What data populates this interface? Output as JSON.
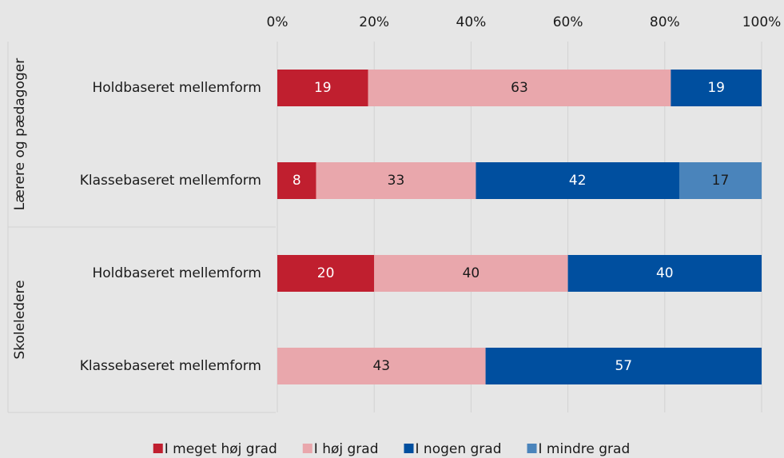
{
  "chart_data": {
    "type": "bar",
    "orientation": "horizontal",
    "stacked": true,
    "groups": [
      {
        "name": "Lærere og pædagoger",
        "categories": [
          "Holdbaseret mellemform",
          "Klassebaseret mellemform"
        ]
      },
      {
        "name": "Skoleledere",
        "categories": [
          "Holdbaseret mellemform",
          "Klassebaseret mellemform"
        ]
      }
    ],
    "series": [
      {
        "name": "I meget høj grad",
        "color": "#c01f2f",
        "label_color": "#ffffff",
        "values": [
          18.75,
          8,
          20,
          null
        ],
        "value_labels": [
          "19",
          "8",
          "20",
          null
        ]
      },
      {
        "name": "I høj grad",
        "color": "#e9a7ac",
        "label_color": "#1a1a1a",
        "values": [
          62.5,
          33,
          40,
          43
        ],
        "value_labels": [
          "63",
          "33",
          "40",
          "43"
        ]
      },
      {
        "name": "I nogen grad",
        "color": "#004f9f",
        "label_color": "#ffffff",
        "values": [
          18.75,
          42,
          40,
          57
        ],
        "value_labels": [
          "19",
          "42",
          "40",
          "57"
        ]
      },
      {
        "name": "I mindre grad",
        "color": "#4a84bb",
        "label_color": "#1a1a1a",
        "values": [
          null,
          17,
          null,
          null
        ]
      }
    ],
    "xlim": [
      0,
      100
    ],
    "xticks": [
      {
        "value": 0,
        "label": "0%"
      },
      {
        "value": 20,
        "label": "20%"
      },
      {
        "value": 40,
        "label": "40%"
      },
      {
        "value": 60,
        "label": "60%"
      },
      {
        "value": 80,
        "label": "80%"
      },
      {
        "value": 100,
        "label": "100%"
      }
    ],
    "grid": true,
    "legend": "bottom"
  }
}
